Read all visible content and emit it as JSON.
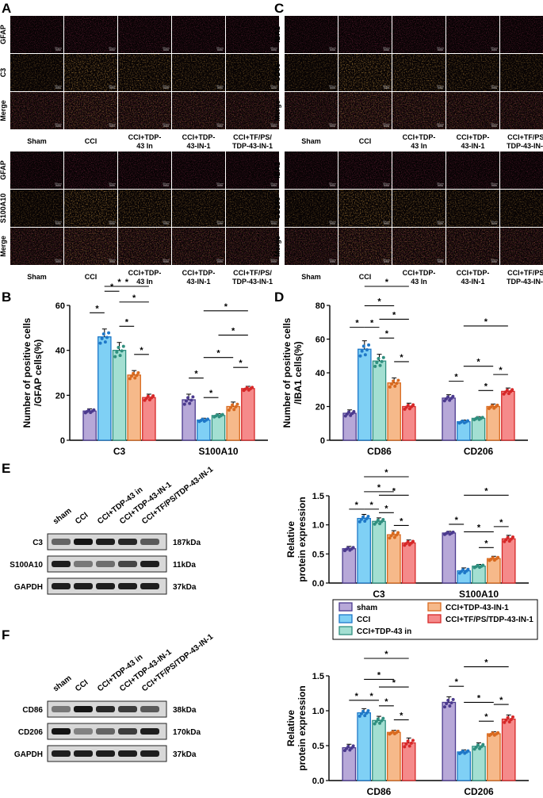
{
  "panels": {
    "A": "A",
    "B": "B",
    "C": "C",
    "D": "D",
    "E": "E",
    "F": "F"
  },
  "groups_if": [
    "Sham",
    "CCI",
    "CCI+TDP-43 In",
    "CCI+TDP-43-IN-1",
    "CCI+TF/PS/TDP-43-IN-1"
  ],
  "groups_if_lines": [
    [
      "Sham"
    ],
    [
      "CCI"
    ],
    [
      "CCI+TDP-",
      "43 In"
    ],
    [
      "CCI+TDP-",
      "43-IN-1"
    ],
    [
      "CCI+TF/PS/",
      "TDP-43-IN-1"
    ]
  ],
  "if_A1_rows": [
    "GFAP",
    "C3",
    "Merge"
  ],
  "if_A2_rows": [
    "GFAP",
    "S100A10",
    "Merge"
  ],
  "if_C1_rows": [
    "IBA1",
    "CD86",
    "Merge"
  ],
  "if_C2_rows": [
    "IBA1",
    "CD206",
    "Merge"
  ],
  "scale_bar_text": "50 μm",
  "colors": {
    "sham": "#b7a8d8",
    "cci": "#7fd0f5",
    "tdp_in": "#a3dfd2",
    "tdp_in1": "#f6b98a",
    "tf_ps": "#f58a8a",
    "sham_edge": "#4b3a8e",
    "cci_edge": "#1f78c8",
    "tdp_in_edge": "#2f8f7f",
    "tdp_in1_edge": "#d96a1f",
    "tf_ps_edge": "#d62828",
    "if_red": "#6a1020",
    "if_orange": "#8a4a10",
    "if_cyan": "#3fd0d0"
  },
  "chart_data": [
    {
      "id": "B",
      "type": "bar",
      "ylabel_lines": [
        "Number of positive cells",
        "/GFAP cells(%)"
      ],
      "categories": [
        "C3",
        "S100A10"
      ],
      "ylim": [
        0,
        60
      ],
      "yticks": [
        0,
        20,
        40,
        60
      ],
      "yticklabels": [
        "0",
        "20",
        "40",
        "60"
      ],
      "series": [
        {
          "values": [
            13,
            18
          ]
        },
        {
          "values": [
            46,
            9
          ]
        },
        {
          "values": [
            40,
            11
          ]
        },
        {
          "values": [
            29,
            15
          ]
        },
        {
          "values": [
            19,
            23
          ]
        }
      ],
      "errors": [
        [
          1,
          2.5
        ],
        [
          3.5,
          0.8
        ],
        [
          3.5,
          0.8
        ],
        [
          2,
          2
        ],
        [
          1.5,
          1
        ]
      ],
      "significance": "*"
    },
    {
      "id": "D",
      "type": "bar",
      "ylabel_lines": [
        "Number of positive cells",
        "/IBA1 cells(%)"
      ],
      "categories": [
        "CD86",
        "CD206"
      ],
      "ylim": [
        0,
        80
      ],
      "yticks": [
        0,
        20,
        40,
        60,
        80
      ],
      "yticklabels": [
        "0",
        "20",
        "40",
        "60",
        "80"
      ],
      "series": [
        {
          "values": [
            16,
            25
          ]
        },
        {
          "values": [
            54,
            11
          ]
        },
        {
          "values": [
            47,
            13
          ]
        },
        {
          "values": [
            34,
            20
          ]
        },
        {
          "values": [
            20,
            29
          ]
        }
      ],
      "errors": [
        [
          2,
          2
        ],
        [
          5,
          1
        ],
        [
          4,
          1
        ],
        [
          3,
          1.5
        ],
        [
          2,
          2
        ]
      ],
      "significance": "*"
    },
    {
      "id": "E",
      "type": "bar",
      "ylabel_lines": [
        "Relative",
        "protein expression"
      ],
      "categories": [
        "C3",
        "S100A10"
      ],
      "ylim": [
        0,
        1.5
      ],
      "yticks": [
        0,
        0.5,
        1.0,
        1.5
      ],
      "yticklabels": [
        "0.0",
        "0.5",
        "1.0",
        "1.5"
      ],
      "series": [
        {
          "values": [
            0.59,
            0.86
          ]
        },
        {
          "values": [
            1.11,
            0.21
          ]
        },
        {
          "values": [
            1.06,
            0.29
          ]
        },
        {
          "values": [
            0.83,
            0.42
          ]
        },
        {
          "values": [
            0.69,
            0.76
          ]
        }
      ],
      "errors": [
        [
          0.04,
          0.03
        ],
        [
          0.07,
          0.05
        ],
        [
          0.06,
          0.03
        ],
        [
          0.07,
          0.04
        ],
        [
          0.05,
          0.06
        ]
      ],
      "significance": "*"
    },
    {
      "id": "F",
      "type": "bar",
      "ylabel_lines": [
        "Relative",
        "protein expression"
      ],
      "categories": [
        "CD86",
        "CD206"
      ],
      "ylim": [
        0,
        1.5
      ],
      "yticks": [
        0,
        0.5,
        1.0,
        1.5
      ],
      "yticklabels": [
        "0.0",
        "0.5",
        "1.0",
        "1.5"
      ],
      "series": [
        {
          "values": [
            0.47,
            1.12
          ]
        },
        {
          "values": [
            0.97,
            0.41
          ]
        },
        {
          "values": [
            0.86,
            0.49
          ]
        },
        {
          "values": [
            0.69,
            0.67
          ]
        },
        {
          "values": [
            0.54,
            0.88
          ]
        }
      ],
      "errors": [
        [
          0.05,
          0.08
        ],
        [
          0.06,
          0.03
        ],
        [
          0.06,
          0.05
        ],
        [
          0.03,
          0.03
        ],
        [
          0.07,
          0.06
        ]
      ],
      "significance": "*"
    }
  ],
  "legend": {
    "items": [
      {
        "label": "sham",
        "key": "sham"
      },
      {
        "label": "CCI+TDP-43-IN-1",
        "key": "tdp_in1"
      },
      {
        "label": "CCI",
        "key": "cci"
      },
      {
        "label": "CCI+TF/PS/TDP-43-IN-1",
        "key": "tf_ps"
      },
      {
        "label": "CCI+TDP-43 in",
        "key": "tdp_in"
      }
    ]
  },
  "wb_E": {
    "lanes": [
      "sham",
      "CCI",
      "CCI+TDP-43 in",
      "CCI+TDP-43-IN-1",
      "CCI+TF/PS/TDP-43-IN-1"
    ],
    "blots": [
      {
        "protein": "C3",
        "kda": "187kDa",
        "intens": [
          0.55,
          0.95,
          0.9,
          0.85,
          0.6
        ]
      },
      {
        "protein": "S100A10",
        "kda": "11kDa",
        "intens": [
          0.9,
          0.45,
          0.5,
          0.7,
          0.9
        ]
      },
      {
        "protein": "GAPDH",
        "kda": "37kDa",
        "intens": [
          0.9,
          0.9,
          0.9,
          0.9,
          0.9
        ]
      }
    ]
  },
  "wb_F": {
    "lanes": [
      "sham",
      "CCI",
      "CCI+TDP-43 in",
      "CCI+TDP-43-IN-1",
      "CCI+TF/PS/TDP-43-IN-1"
    ],
    "blots": [
      {
        "protein": "CD86",
        "kda": "38kDa",
        "intens": [
          0.45,
          0.95,
          0.85,
          0.75,
          0.6
        ]
      },
      {
        "protein": "CD206",
        "kda": "170kDa",
        "intens": [
          0.95,
          0.4,
          0.55,
          0.75,
          0.9
        ]
      },
      {
        "protein": "GAPDH",
        "kda": "37kDa",
        "intens": [
          0.9,
          0.9,
          0.9,
          0.9,
          0.9
        ]
      }
    ]
  }
}
